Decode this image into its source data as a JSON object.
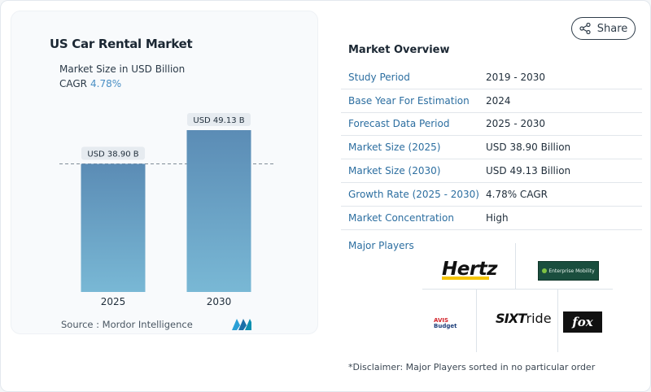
{
  "share": {
    "label": "Share",
    "icon": "share-icon"
  },
  "chart": {
    "title": "US Car Rental Market",
    "subtitle": "Market Size in USD Billion",
    "cagr_label": "CAGR",
    "cagr_value": "4.78%",
    "source": "Source :  Mordor Intelligence",
    "logo": "mordor-intelligence-logo"
  },
  "chart_data": {
    "type": "bar",
    "title": "US Car Rental Market",
    "ylabel": "Market Size in USD Billion",
    "categories": [
      "2025",
      "2030"
    ],
    "values": [
      38.9,
      49.13
    ],
    "data_labels": [
      "USD 38.90 B",
      "USD 49.13 B"
    ],
    "ylim": [
      0,
      60
    ],
    "reference_line": 38.9,
    "colors": {
      "bar_top": "#5b8cb5",
      "bar_bottom": "#79b8d5",
      "label_bg": "#e6ebf0"
    }
  },
  "overview": {
    "title": "Market Overview",
    "rows": [
      {
        "label": "Study Period",
        "value": "2019 - 2030"
      },
      {
        "label": "Base Year For Estimation",
        "value": "2024"
      },
      {
        "label": "Forecast Data Period",
        "value": "2025 - 2030"
      },
      {
        "label": "Market Size (2025)",
        "value": "USD 38.90 Billion"
      },
      {
        "label": "Market Size (2030)",
        "value": "USD 49.13 Billion"
      },
      {
        "label": "Growth Rate (2025 - 2030)",
        "value": "4.78% CAGR"
      },
      {
        "label": "Market Concentration",
        "value": "High"
      }
    ]
  },
  "players": {
    "label": "Major Players",
    "hertz": "Hertz",
    "enterprise": "Enterprise Mobility",
    "avis": "AVIS",
    "budget": "Budget",
    "sixt": "SIXT",
    "sixt_ride": "ride",
    "fox": "fox"
  },
  "disclaimer": "*Disclaimer: Major Players sorted in no particular order",
  "colors": {
    "accent": "#2c6ea0",
    "cagr": "#4a8fc4"
  }
}
